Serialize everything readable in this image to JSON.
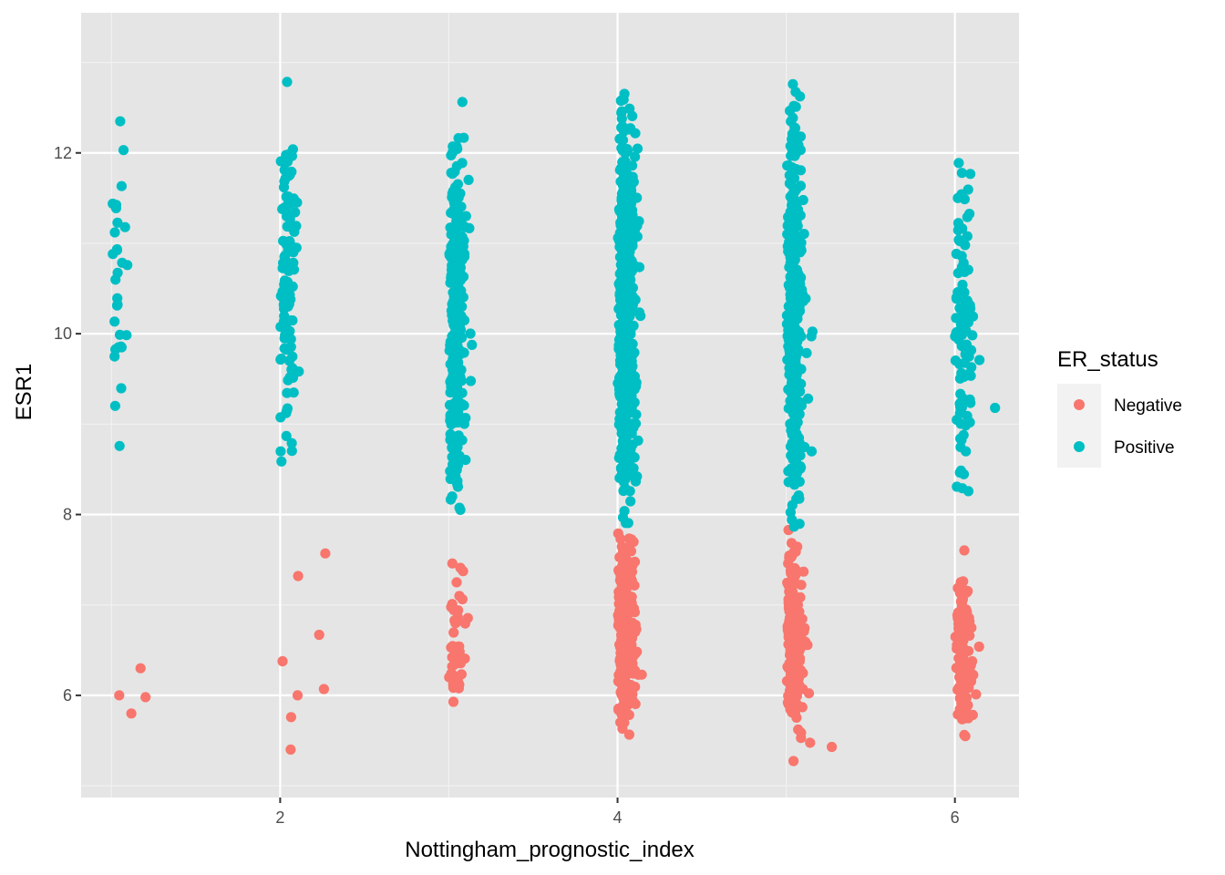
{
  "chart_data": {
    "type": "scatter",
    "title": "",
    "xlabel": "Nottingham_prognostic_index",
    "ylabel": "ESR1",
    "xlim": [
      0.82,
      6.38
    ],
    "ylim": [
      4.87,
      13.55
    ],
    "x_ticks": [
      2,
      4,
      6
    ],
    "x_tick_labels": [
      "2",
      "4",
      "6"
    ],
    "y_ticks": [
      6,
      8,
      10,
      12
    ],
    "y_tick_labels": [
      "6",
      "8",
      "10",
      "12"
    ],
    "grid": true,
    "background": "#e5e5e5",
    "legend": {
      "title": "ER_status",
      "position": "right",
      "entries": [
        {
          "label": "Negative",
          "color": "#f8766d"
        },
        {
          "label": "Positive",
          "color": "#00bfc4"
        }
      ]
    },
    "series": [
      {
        "name": "Negative",
        "color": "#f8766d",
        "groups": [
          {
            "x": 1,
            "n": 4,
            "ymin": 5.8,
            "ymax": 6.3,
            "outliers": [
              6.3,
              6.0,
              5.98,
              5.8
            ]
          },
          {
            "x": 2,
            "n": 8,
            "ymin": 5.4,
            "ymax": 7.6,
            "outliers": [
              7.57,
              7.32,
              6.67,
              6.07,
              6.0,
              5.4
            ]
          },
          {
            "x": 3,
            "n": 45,
            "ymin": 5.35,
            "ymax": 7.7,
            "outliers": []
          },
          {
            "x": 4,
            "n": 300,
            "ymin": 5.3,
            "ymax": 8.1,
            "outliers": []
          },
          {
            "x": 5,
            "n": 200,
            "ymin": 5.2,
            "ymax": 8.0,
            "outliers": [
              5.43
            ]
          },
          {
            "x": 6,
            "n": 110,
            "ymin": 5.35,
            "ymax": 7.7,
            "outliers": []
          }
        ]
      },
      {
        "name": "Positive",
        "color": "#00bfc4",
        "groups": [
          {
            "x": 1,
            "n": 30,
            "ymin": 8.05,
            "ymax": 12.5,
            "outliers": []
          },
          {
            "x": 2,
            "n": 110,
            "ymin": 7.9,
            "ymax": 13.0,
            "outliers": []
          },
          {
            "x": 3,
            "n": 300,
            "ymin": 7.5,
            "ymax": 12.95,
            "outliers": []
          },
          {
            "x": 4,
            "n": 550,
            "ymin": 7.5,
            "ymax": 13.05,
            "outliers": []
          },
          {
            "x": 5,
            "n": 350,
            "ymin": 7.2,
            "ymax": 13.3,
            "outliers": []
          },
          {
            "x": 6,
            "n": 110,
            "ymin": 7.65,
            "ymax": 12.45,
            "outliers": [
              10.3,
              10.22,
              9.18
            ]
          }
        ]
      }
    ]
  }
}
